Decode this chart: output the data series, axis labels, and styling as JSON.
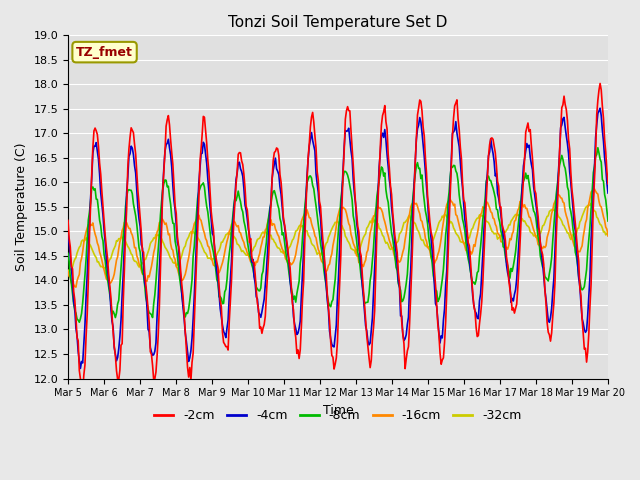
{
  "title": "Tonzi Soil Temperature Set D",
  "xlabel": "Time",
  "ylabel": "Soil Temperature (C)",
  "ylim": [
    12.0,
    19.0
  ],
  "yticks": [
    12.0,
    12.5,
    13.0,
    13.5,
    14.0,
    14.5,
    15.0,
    15.5,
    16.0,
    16.5,
    17.0,
    17.5,
    18.0,
    18.5,
    19.0
  ],
  "xtick_labels": [
    "Mar 5",
    "Mar 6",
    "Mar 7",
    "Mar 8",
    "Mar 9",
    "Mar 10",
    "Mar 11",
    "Mar 12",
    "Mar 13",
    "Mar 14",
    "Mar 15",
    "Mar 16",
    "Mar 17",
    "Mar 18",
    "Mar 19",
    "Mar 20"
  ],
  "series_labels": [
    "-2cm",
    "-4cm",
    "-8cm",
    "-16cm",
    "-32cm"
  ],
  "series_colors": [
    "#ff0000",
    "#0000cc",
    "#00bb00",
    "#ff8800",
    "#cccc00"
  ],
  "series_linewidths": [
    1.2,
    1.2,
    1.2,
    1.2,
    1.2
  ],
  "legend_label": "TZ_fmet",
  "legend_bg": "#ffffcc",
  "legend_border": "#999900",
  "fig_bg": "#e8e8e8",
  "plot_bg": "#e0e0e0",
  "title_fontsize": 11,
  "n_points": 480
}
